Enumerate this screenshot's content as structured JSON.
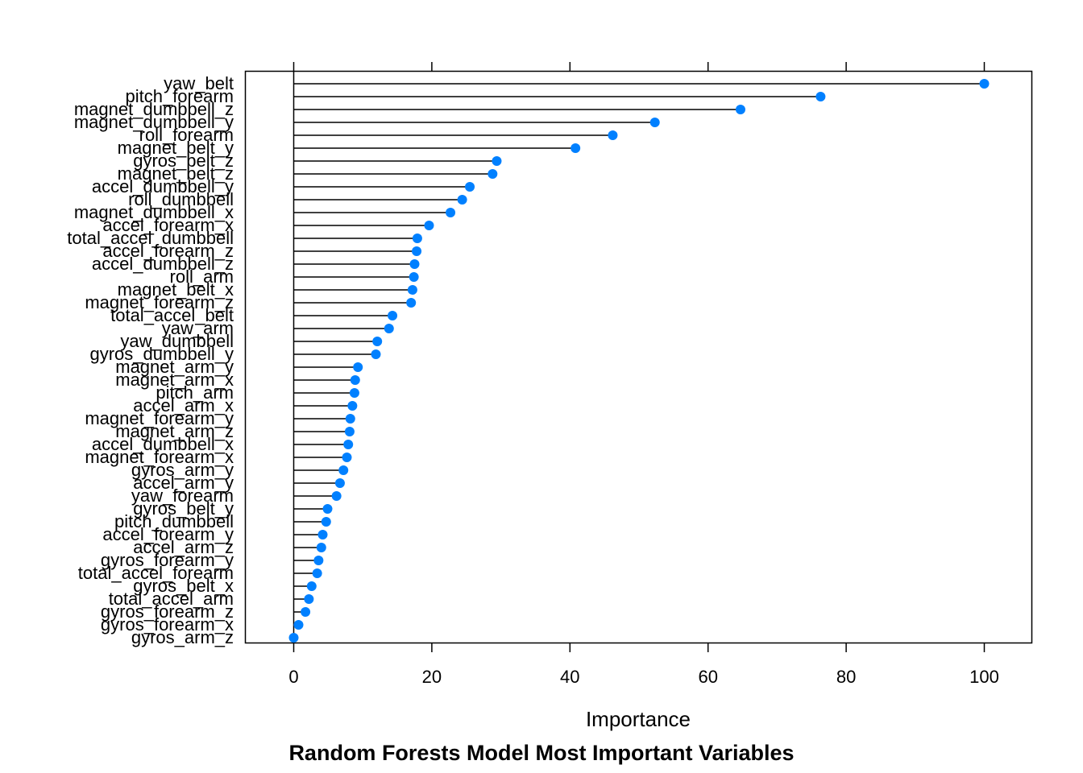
{
  "chart_data": {
    "type": "dotplot",
    "title": "Random Forests Model Most Important Variables",
    "xlabel": "Importance",
    "ylabel": "",
    "xlim": [
      -7,
      107
    ],
    "xticks": [
      0,
      20,
      40,
      60,
      80,
      100
    ],
    "tick_labels": [
      "0",
      "20",
      "40",
      "60",
      "80",
      "100"
    ],
    "grid": false,
    "marker_color": "#0080ff",
    "stem_color": "#000000",
    "variables": [
      {
        "name": "yaw_belt",
        "value": 100
      },
      {
        "name": "pitch_forearm",
        "value": 76.3
      },
      {
        "name": "magnet_dumbbell_z",
        "value": 64.7
      },
      {
        "name": "magnet_dumbbell_y",
        "value": 52.3
      },
      {
        "name": "roll_forearm",
        "value": 46.2
      },
      {
        "name": "magnet_belt_y",
        "value": 40.8
      },
      {
        "name": "gyros_belt_z",
        "value": 29.4
      },
      {
        "name": "magnet_belt_z",
        "value": 28.8
      },
      {
        "name": "accel_dumbbell_y",
        "value": 25.5
      },
      {
        "name": "roll_dumbbell",
        "value": 24.4
      },
      {
        "name": "magnet_dumbbell_x",
        "value": 22.7
      },
      {
        "name": "accel_forearm_x",
        "value": 19.6
      },
      {
        "name": "total_accel_dumbbell",
        "value": 17.9
      },
      {
        "name": "accel_forearm_z",
        "value": 17.8
      },
      {
        "name": "accel_dumbbell_z",
        "value": 17.5
      },
      {
        "name": "roll_arm",
        "value": 17.4
      },
      {
        "name": "magnet_belt_x",
        "value": 17.2
      },
      {
        "name": "magnet_forearm_z",
        "value": 17.0
      },
      {
        "name": "total_accel_belt",
        "value": 14.3
      },
      {
        "name": "yaw_arm",
        "value": 13.8
      },
      {
        "name": "yaw_dumbbell",
        "value": 12.1
      },
      {
        "name": "gyros_dumbbell_y",
        "value": 11.9
      },
      {
        "name": "magnet_arm_y",
        "value": 9.3
      },
      {
        "name": "magnet_arm_x",
        "value": 8.9
      },
      {
        "name": "pitch_arm",
        "value": 8.8
      },
      {
        "name": "accel_arm_x",
        "value": 8.5
      },
      {
        "name": "magnet_forearm_y",
        "value": 8.2
      },
      {
        "name": "magnet_arm_z",
        "value": 8.1
      },
      {
        "name": "accel_dumbbell_x",
        "value": 7.9
      },
      {
        "name": "magnet_forearm_x",
        "value": 7.7
      },
      {
        "name": "gyros_arm_y",
        "value": 7.2
      },
      {
        "name": "accel_arm_y",
        "value": 6.7
      },
      {
        "name": "yaw_forearm",
        "value": 6.2
      },
      {
        "name": "gyros_belt_y",
        "value": 4.9
      },
      {
        "name": "pitch_dumbbell",
        "value": 4.7
      },
      {
        "name": "accel_forearm_y",
        "value": 4.2
      },
      {
        "name": "accel_arm_z",
        "value": 4.0
      },
      {
        "name": "gyros_forearm_y",
        "value": 3.6
      },
      {
        "name": "total_accel_forearm",
        "value": 3.4
      },
      {
        "name": "gyros_belt_x",
        "value": 2.6
      },
      {
        "name": "total_accel_arm",
        "value": 2.2
      },
      {
        "name": "gyros_forearm_z",
        "value": 1.7
      },
      {
        "name": "gyros_forearm_x",
        "value": 0.7
      },
      {
        "name": "gyros_arm_z",
        "value": 0
      }
    ]
  }
}
